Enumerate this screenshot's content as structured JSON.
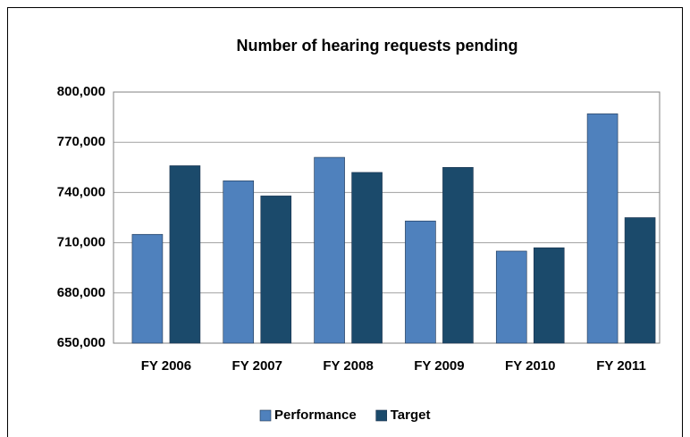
{
  "chart_data": {
    "type": "bar",
    "title": "Number of hearing requests pending",
    "categories": [
      "FY 2006",
      "FY 2007",
      "FY 2008",
      "FY 2009",
      "FY 2010",
      "FY 2011"
    ],
    "series": [
      {
        "name": "Performance",
        "color": "#4f81bd",
        "values": [
          715000,
          747000,
          761000,
          723000,
          705000,
          787000
        ]
      },
      {
        "name": "Target",
        "color": "#1b4a6b",
        "values": [
          756000,
          738000,
          752000,
          755000,
          707000,
          725000
        ]
      }
    ],
    "ylim": [
      650000,
      800000
    ],
    "yticks": [
      {
        "value": 650000,
        "label": "650,000"
      },
      {
        "value": 680000,
        "label": "680,000"
      },
      {
        "value": 710000,
        "label": "710,000"
      },
      {
        "value": 740000,
        "label": "740,000"
      },
      {
        "value": 770000,
        "label": "770,000"
      },
      {
        "value": 800000,
        "label": "800,000"
      }
    ],
    "grid": true,
    "legend": "bottom"
  }
}
